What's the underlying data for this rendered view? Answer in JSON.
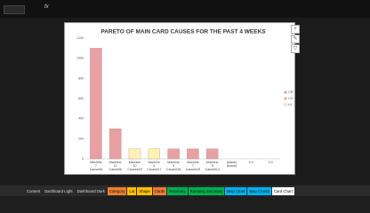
{
  "formula_bar": {
    "fx": "fx"
  },
  "chart_data": {
    "type": "bar",
    "stacked": true,
    "title": "PARETO OF MAIN CARD CAUSES FOR THE PAST 4 WEEKS",
    "categories": [
      "Machine 7 Cause#8",
      "Machine 11 Cause#9",
      "Machine 10 Cause#16",
      "Machine 9 Cause#17",
      "Machine 9 Cause#16",
      "Machine 7 Cause#15",
      "Machine 5 Cause#14",
      "(blank) (blank)",
      "0 0",
      "0 0"
    ],
    "series": [
      {
        "name": "CR",
        "color": "#e8a0a3",
        "values": [
          1100,
          300,
          null,
          null,
          100,
          100,
          100,
          null,
          null,
          null
        ]
      },
      {
        "name": "CO",
        "color": "#f4b183",
        "values": [
          null,
          null,
          null,
          null,
          null,
          null,
          null,
          null,
          null,
          null
        ]
      },
      {
        "name": "LV",
        "color": "#fff2b3",
        "values": [
          null,
          null,
          100,
          100,
          null,
          null,
          null,
          null,
          null,
          null
        ]
      }
    ],
    "ylim": [
      0,
      1200
    ],
    "yticks": [
      0,
      200,
      400,
      600,
      800,
      1000,
      1200
    ],
    "grid": false,
    "legend": "right"
  },
  "sheet_tabs": [
    {
      "label": "Content",
      "color": "#2b2b2b"
    },
    {
      "label": "Dashboard Light",
      "color": "#2b2b2b"
    },
    {
      "label": "Dashboard Dark",
      "color": "#2b2b2b"
    },
    {
      "label": "Category",
      "color": "#ed7d31"
    },
    {
      "label": "Lot",
      "color": "#ffc000"
    },
    {
      "label": "Shape",
      "color": "#ffc000"
    },
    {
      "label": "Cards",
      "color": "#ed7d31"
    },
    {
      "label": "Summary",
      "color": "#00b050"
    },
    {
      "label": "Ramping Summary",
      "color": "#00b050"
    },
    {
      "label": "Map Chart",
      "color": "#00b0f0"
    },
    {
      "label": "Map Chart2",
      "color": "#00b0f0"
    },
    {
      "label": "Card Chart",
      "color": "#ffffff"
    }
  ]
}
